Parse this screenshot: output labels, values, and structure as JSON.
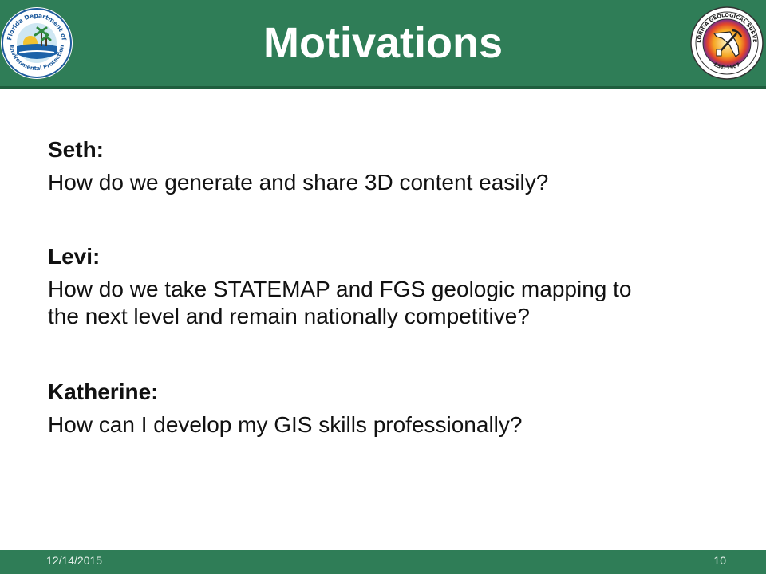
{
  "slide": {
    "title": "Motivations"
  },
  "logos": {
    "left": {
      "icon": "florida-dep-seal-icon",
      "top_text": "Florida Department of",
      "bottom_text": "Environmental Protection"
    },
    "right": {
      "icon": "florida-geological-survey-seal-icon",
      "top_text": "FLORIDA GEOLOGICAL SURVEY",
      "bottom_text": "EST. 1907"
    }
  },
  "people": [
    {
      "name": "Seth:",
      "question": "How do we generate and share 3D content easily?"
    },
    {
      "name": "Levi:",
      "question": "How do we take STATEMAP and FGS geologic mapping to the next level and remain nationally competitive?"
    },
    {
      "name": "Katherine:",
      "question": "How can I develop my GIS skills professionally?"
    }
  ],
  "footer": {
    "date": "12/14/2015",
    "page_number": "10"
  },
  "colors": {
    "header": "#2f7d57",
    "header_line": "#1f5e3e",
    "text": "#111111"
  }
}
